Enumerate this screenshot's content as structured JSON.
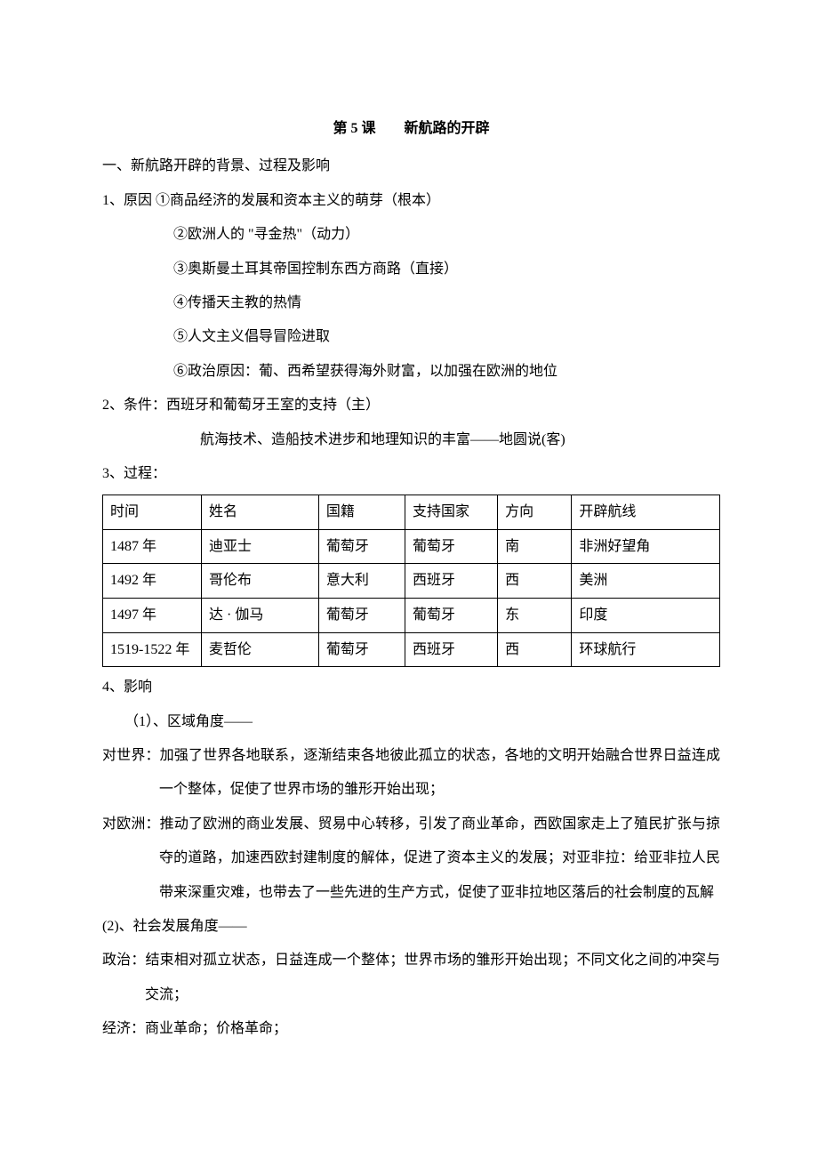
{
  "title": "第 5 课　　新航路的开辟",
  "h1": "一、新航路开辟的背景、过程及影响",
  "cause_label": "1、原因 ①商品经济的发展和资本主义的萌芽（根本）",
  "cause_2": "②欧洲人的 \"寻金热\"（动力）",
  "cause_3": "③奥斯曼土耳其帝国控制东西方商路（直接）",
  "cause_4": "④传播天主教的热情",
  "cause_5": "⑤人文主义倡导冒险进取",
  "cause_6": "⑥政治原因：葡、西希望获得海外财富，以加强在欧洲的地位",
  "cond_label": "2、条件：西班牙和葡萄牙王室的支持（主）",
  "cond_2": "航海技术、造船技术进步和地理知识的丰富——地圆说(客)",
  "process_label": "3、过程：",
  "table": {
    "headers": [
      "时间",
      "姓名",
      "国籍",
      "支持国家",
      "方向",
      "开辟航线"
    ],
    "rows": [
      [
        "1487 年",
        "迪亚士",
        "葡萄牙",
        "葡萄牙",
        "南",
        "非洲好望角"
      ],
      [
        "1492 年",
        "哥伦布",
        "意大利",
        "西班牙",
        "西",
        "美洲"
      ],
      [
        "1497 年",
        "达 · 伽马",
        "葡萄牙",
        "葡萄牙",
        "东",
        "印度"
      ],
      [
        "1519-1522 年",
        "麦哲伦",
        "葡萄牙",
        "西班牙",
        "西",
        "环球航行"
      ]
    ]
  },
  "impact_label": "4、影响",
  "impact_1_label": "（1）、区域角度——",
  "impact_world": "对世界：加强了世界各地联系，逐渐结束各地彼此孤立的状态，各地的文明开始融合世界日益连成一个整体，促使了世界市场的雏形开始出现；",
  "impact_europe": "对欧洲：推动了欧洲的商业发展、贸易中心转移，引发了商业革命，西欧国家走上了殖民扩张与掠夺的道路，加速西欧封建制度的解体，促进了资本主义的发展；对亚非拉：给亚非拉人民带来深重灾难，也带去了一些先进的生产方式，促使了亚非拉地区落后的社会制度的瓦解",
  "impact_2_label": "(2)、社会发展角度——",
  "impact_pol": "政治：结束相对孤立状态，日益连成一个整体；世界市场的雏形开始出现；不同文化之间的冲突与交流；",
  "impact_econ": "经济：商业革命；价格革命；"
}
